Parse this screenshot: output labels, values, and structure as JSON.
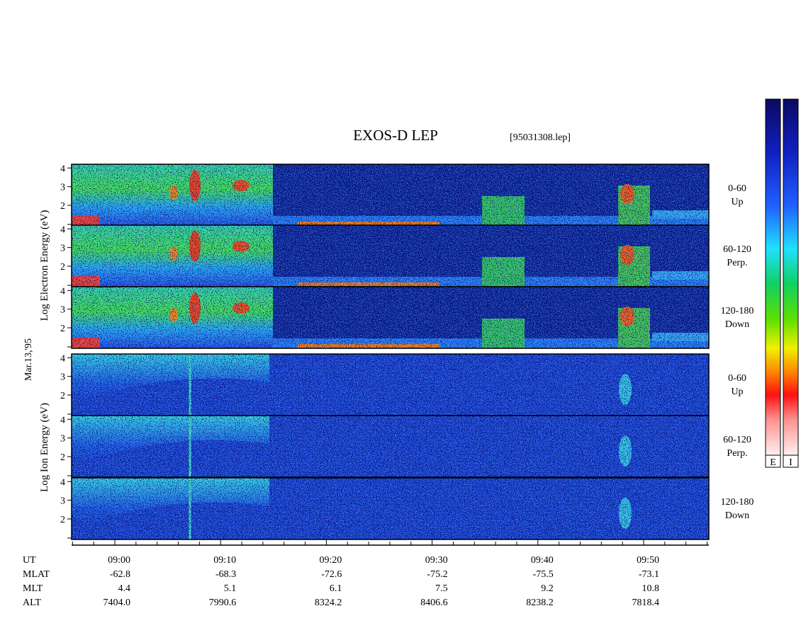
{
  "title": "EXOS-D LEP",
  "file": "[95031308.lep]",
  "date": "Mar.13,'95",
  "electron_label": "Log Electron Energy (eV)",
  "ion_label": "Log Ion Energy (eV)",
  "panels": [
    {
      "angle": "0-60",
      "direction": "Up"
    },
    {
      "angle": "60-120",
      "direction": "Perp."
    },
    {
      "angle": "120-180",
      "direction": "Down"
    },
    {
      "angle": "0-60",
      "direction": "Up"
    },
    {
      "angle": "60-120",
      "direction": "Perp."
    },
    {
      "angle": "120-180",
      "direction": "Down"
    }
  ],
  "ylim": [
    0.9,
    4.2
  ],
  "yticks": [
    2,
    3,
    4
  ],
  "row_labels": [
    "UT",
    "MLAT",
    "MLT",
    "ALT"
  ],
  "columns": [
    [
      "09:00",
      "-62.8",
      "4.4",
      "7404.0"
    ],
    [
      "09:10",
      "-68.3",
      "5.1",
      "7990.6"
    ],
    [
      "09:20",
      "-72.6",
      "6.1",
      "8324.2"
    ],
    [
      "09:30",
      "-75.2",
      "7.5",
      "8406.6"
    ],
    [
      "09:40",
      "-75.5",
      "9.2",
      "8238.2"
    ],
    [
      "09:50",
      "-73.1",
      "10.8",
      "7818.4"
    ]
  ],
  "colorbars": [
    "E",
    "I"
  ]
}
